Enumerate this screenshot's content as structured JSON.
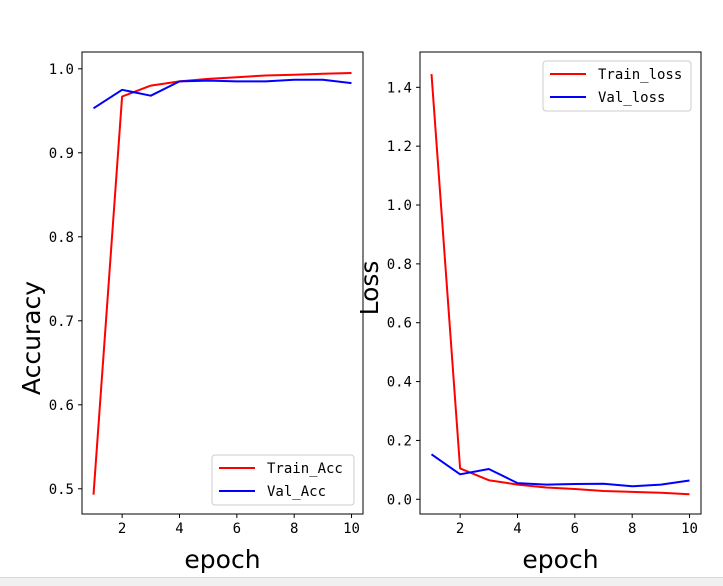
{
  "chart_data": [
    {
      "type": "line",
      "xlabel": "epoch",
      "ylabel": "Accuracy",
      "xlim": [
        0.6,
        10.4
      ],
      "ylim": [
        0.47,
        1.02
      ],
      "xticks": [
        2,
        4,
        6,
        8,
        10
      ],
      "xtick_labels": [
        "2",
        "4",
        "6",
        "8",
        "10"
      ],
      "yticks": [
        0.5,
        0.6,
        0.7,
        0.8,
        0.9,
        1.0
      ],
      "ytick_labels": [
        "0.5",
        "0.6",
        "0.7",
        "0.8",
        "0.9",
        "1.0"
      ],
      "legend_position": "lower-right",
      "grid": false,
      "x": [
        1,
        2,
        3,
        4,
        5,
        6,
        7,
        8,
        9,
        10
      ],
      "series": [
        {
          "name": "Train_Acc",
          "color": "#ff0000",
          "values": [
            0.493,
            0.967,
            0.98,
            0.985,
            0.988,
            0.99,
            0.992,
            0.993,
            0.994,
            0.995
          ]
        },
        {
          "name": "Val_Acc",
          "color": "#0000ff",
          "values": [
            0.953,
            0.975,
            0.968,
            0.985,
            0.986,
            0.985,
            0.985,
            0.987,
            0.987,
            0.983
          ]
        }
      ]
    },
    {
      "type": "line",
      "xlabel": "epoch",
      "ylabel": "Loss",
      "xlim": [
        0.6,
        10.4
      ],
      "ylim": [
        -0.05,
        1.52
      ],
      "xticks": [
        2,
        4,
        6,
        8,
        10
      ],
      "xtick_labels": [
        "2",
        "4",
        "6",
        "8",
        "10"
      ],
      "yticks": [
        0.0,
        0.2,
        0.4,
        0.6,
        0.8,
        1.0,
        1.2,
        1.4
      ],
      "ytick_labels": [
        "0.0",
        "0.2",
        "0.4",
        "0.6",
        "0.8",
        "1.0",
        "1.2",
        "1.4"
      ],
      "legend_position": "upper-right",
      "grid": false,
      "x": [
        1,
        2,
        3,
        4,
        5,
        6,
        7,
        8,
        9,
        10
      ],
      "series": [
        {
          "name": "Train_loss",
          "color": "#ff0000",
          "values": [
            1.445,
            0.105,
            0.065,
            0.05,
            0.04,
            0.035,
            0.028,
            0.025,
            0.022,
            0.017
          ]
        },
        {
          "name": "Val_loss",
          "color": "#0000ff",
          "values": [
            0.153,
            0.085,
            0.103,
            0.055,
            0.05,
            0.052,
            0.053,
            0.044,
            0.05,
            0.064
          ]
        }
      ]
    }
  ]
}
